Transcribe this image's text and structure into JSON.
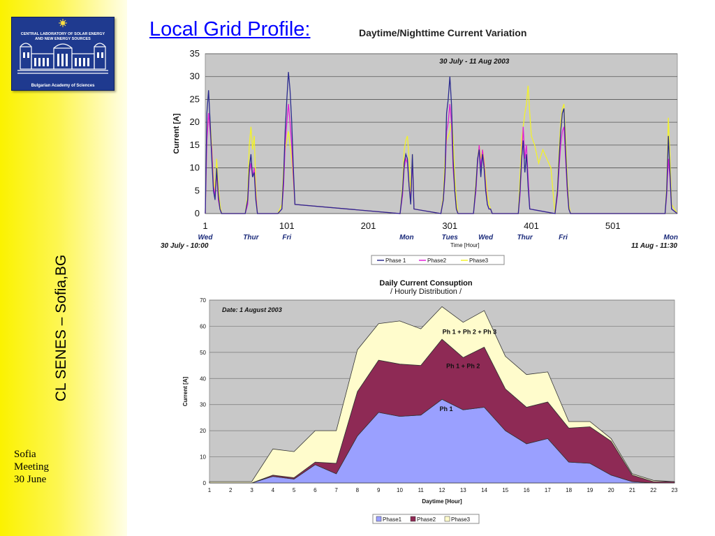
{
  "sidebar": {
    "logo": {
      "line1": "CENTRAL LABORATORY OF SOLAR ENERGY",
      "line2": "AND NEW ENERGY SOURCES",
      "bottom": "Bulgarian Academy of Sciences"
    },
    "vertical_text": "CL SENES – Sofia,BG",
    "footer": [
      "Sofia",
      "Meeting",
      "30 June"
    ]
  },
  "slide_title": "Local Grid Profile:",
  "colors": {
    "title_link": "#0000ff",
    "phase1_line": "#2b2b8f",
    "phase2_line": "#e020d8",
    "phase3_line": "#f2f22a",
    "phase1_area": "#9aa0ff",
    "phase2_area": "#8e2a55",
    "phase3_area": "#fffccc",
    "plot_bg": "#c8c8c8"
  },
  "chart_data": [
    {
      "type": "line",
      "title": "Daytime/Nighttime Current Variation",
      "subtitle": "30 July - 11 Aug 2003",
      "xlabel": "Time [Hour]",
      "ylabel": "Current [A]",
      "xlim": [
        1,
        580
      ],
      "ylim": [
        0,
        35
      ],
      "grid": true,
      "legend_position": "bottom",
      "x_ticks": [
        1,
        101,
        201,
        301,
        401,
        501
      ],
      "y_ticks": [
        0,
        5,
        10,
        15,
        20,
        25,
        30,
        35
      ],
      "day_labels": [
        {
          "x": 1,
          "label": "Wed"
        },
        {
          "x": 57,
          "label": "Thur"
        },
        {
          "x": 101,
          "label": "Fri"
        },
        {
          "x": 248,
          "label": "Mon"
        },
        {
          "x": 301,
          "label": "Tues"
        },
        {
          "x": 345,
          "label": "Wed"
        },
        {
          "x": 393,
          "label": "Thur"
        },
        {
          "x": 440,
          "label": "Fri"
        },
        {
          "x": 572,
          "label": "Mon"
        }
      ],
      "start_label": "30 July - 10:00",
      "end_label": "11 Aug - 11:30",
      "series": [
        {
          "name": "Phase 1",
          "x": [
            1,
            3,
            5,
            7,
            9,
            11,
            13,
            15,
            17,
            19,
            21,
            40,
            50,
            53,
            55,
            57,
            59,
            61,
            63,
            65,
            90,
            95,
            97,
            99,
            101,
            103,
            105,
            107,
            109,
            111,
            240,
            243,
            245,
            247,
            249,
            251,
            253,
            255,
            257,
            290,
            293,
            295,
            297,
            299,
            301,
            303,
            305,
            307,
            309,
            311,
            330,
            333,
            335,
            337,
            339,
            341,
            343,
            345,
            347,
            349,
            351,
            353,
            385,
            387,
            389,
            391,
            393,
            395,
            397,
            399,
            430,
            433,
            435,
            437,
            439,
            441,
            443,
            445,
            447,
            449,
            565,
            567,
            569,
            571,
            573,
            580
          ],
          "values": [
            0,
            22,
            27,
            20,
            12,
            5,
            3,
            10,
            4,
            1,
            0,
            0,
            0,
            3,
            10,
            13,
            8,
            9,
            3,
            0,
            0,
            1,
            8,
            18,
            25,
            31,
            27,
            20,
            10,
            2,
            0,
            5,
            11,
            13,
            12,
            6,
            2,
            13,
            1,
            0,
            3,
            9,
            22,
            25,
            30,
            24,
            12,
            5,
            1,
            0,
            0,
            6,
            12,
            14,
            8,
            13,
            10,
            5,
            2,
            1,
            1,
            0,
            0,
            5,
            12,
            16,
            9,
            13,
            6,
            1,
            0,
            5,
            12,
            18,
            22,
            23,
            14,
            6,
            1,
            0,
            0,
            5,
            17,
            9,
            1,
            0
          ]
        },
        {
          "name": "Phase2",
          "x": [
            1,
            3,
            5,
            7,
            9,
            11,
            13,
            15,
            17,
            19,
            21,
            40,
            50,
            53,
            55,
            57,
            59,
            61,
            63,
            65,
            90,
            95,
            97,
            99,
            101,
            103,
            105,
            107,
            109,
            111,
            240,
            243,
            245,
            247,
            249,
            251,
            253,
            255,
            257,
            290,
            293,
            295,
            297,
            299,
            301,
            303,
            305,
            307,
            309,
            311,
            330,
            333,
            335,
            337,
            339,
            341,
            343,
            345,
            347,
            349,
            351,
            353,
            385,
            387,
            389,
            391,
            393,
            395,
            397,
            399,
            430,
            433,
            435,
            437,
            439,
            441,
            443,
            445,
            447,
            449,
            565,
            567,
            569,
            571,
            573,
            580
          ],
          "values": [
            0,
            16,
            22,
            18,
            14,
            6,
            4,
            9,
            3,
            1,
            0,
            0,
            0,
            2,
            9,
            11,
            8,
            10,
            4,
            0,
            0,
            1,
            6,
            15,
            20,
            24,
            20,
            15,
            8,
            2,
            0,
            4,
            10,
            12,
            11,
            6,
            3,
            12,
            1,
            0,
            3,
            8,
            18,
            20,
            24,
            20,
            10,
            5,
            1,
            0,
            0,
            5,
            11,
            15,
            10,
            14,
            11,
            6,
            2,
            1,
            1,
            0,
            0,
            4,
            11,
            19,
            12,
            15,
            8,
            1,
            0,
            4,
            10,
            15,
            18,
            19,
            12,
            5,
            1,
            0,
            0,
            4,
            12,
            8,
            1,
            0
          ]
        },
        {
          "name": "Phase3",
          "x": [
            1,
            3,
            5,
            7,
            9,
            11,
            13,
            15,
            17,
            19,
            21,
            40,
            50,
            53,
            55,
            57,
            59,
            61,
            63,
            65,
            90,
            95,
            97,
            99,
            101,
            103,
            105,
            107,
            109,
            111,
            240,
            243,
            245,
            247,
            249,
            251,
            253,
            255,
            257,
            290,
            293,
            295,
            297,
            299,
            301,
            303,
            305,
            307,
            309,
            311,
            330,
            333,
            335,
            337,
            339,
            341,
            343,
            345,
            347,
            349,
            351,
            353,
            385,
            387,
            389,
            391,
            393,
            395,
            397,
            399,
            401,
            405,
            410,
            415,
            420,
            425,
            430,
            433,
            435,
            437,
            439,
            441,
            443,
            445,
            447,
            449,
            565,
            567,
            569,
            571,
            573,
            580
          ],
          "values": [
            0,
            18,
            21,
            20,
            15,
            8,
            5,
            12,
            6,
            2,
            0,
            0,
            0,
            4,
            15,
            19,
            14,
            17,
            6,
            0,
            0,
            2,
            10,
            14,
            16,
            18,
            15,
            12,
            7,
            2,
            0,
            6,
            14,
            16,
            17,
            12,
            4,
            13,
            1,
            0,
            4,
            12,
            16,
            17,
            18,
            20,
            17,
            8,
            3,
            0,
            0,
            7,
            12,
            15,
            12,
            14,
            12,
            8,
            4,
            2,
            1,
            0,
            0,
            8,
            16,
            19,
            22,
            24,
            28,
            22,
            17,
            15,
            11,
            14,
            12,
            10,
            0,
            6,
            14,
            20,
            23,
            24,
            17,
            8,
            2,
            0,
            0,
            6,
            21,
            13,
            2,
            0
          ]
        }
      ]
    },
    {
      "type": "area",
      "title": "Daily Current Consuption",
      "subtitle": "/ Hourly Distribution /",
      "annotation": "Date: 1 August 2003",
      "xlabel": "Daytime [Hour]",
      "ylabel": "Current [A]",
      "ylim": [
        0,
        70
      ],
      "grid": true,
      "legend_position": "bottom",
      "categories": [
        1,
        2,
        3,
        4,
        5,
        6,
        7,
        8,
        9,
        10,
        11,
        12,
        13,
        14,
        15,
        16,
        17,
        18,
        19,
        20,
        21,
        22,
        23
      ],
      "y_ticks": [
        0,
        10,
        20,
        30,
        40,
        50,
        60,
        70
      ],
      "area_labels": [
        {
          "x": 13.3,
          "y": 57,
          "text": "Ph 1 + Ph 2 + Ph 3"
        },
        {
          "x": 13.0,
          "y": 44,
          "text": "Ph 1 + Ph 2"
        },
        {
          "x": 12.2,
          "y": 27.5,
          "text": "Ph 1"
        }
      ],
      "series": [
        {
          "name": "Phase1",
          "values": [
            0,
            0,
            0,
            2.5,
            1.5,
            7,
            3.5,
            18,
            27,
            25.5,
            26,
            32,
            28,
            29,
            20,
            15,
            17,
            8,
            7.5,
            3,
            0.5,
            0,
            0
          ]
        },
        {
          "name": "Phase2",
          "values": [
            0,
            0,
            0,
            0.5,
            0.5,
            1,
            4,
            17,
            20,
            20,
            19,
            23,
            20,
            23,
            16,
            14,
            14,
            13,
            14,
            13,
            2.5,
            0.5,
            0.5
          ]
        },
        {
          "name": "Phase3",
          "values": [
            0.5,
            0.5,
            0.5,
            10,
            10,
            12,
            12.5,
            16,
            14,
            16.5,
            14,
            12.5,
            13.5,
            14,
            12.5,
            12.5,
            11.5,
            2.5,
            2,
            1,
            0.5,
            0.5,
            0
          ]
        }
      ]
    }
  ]
}
